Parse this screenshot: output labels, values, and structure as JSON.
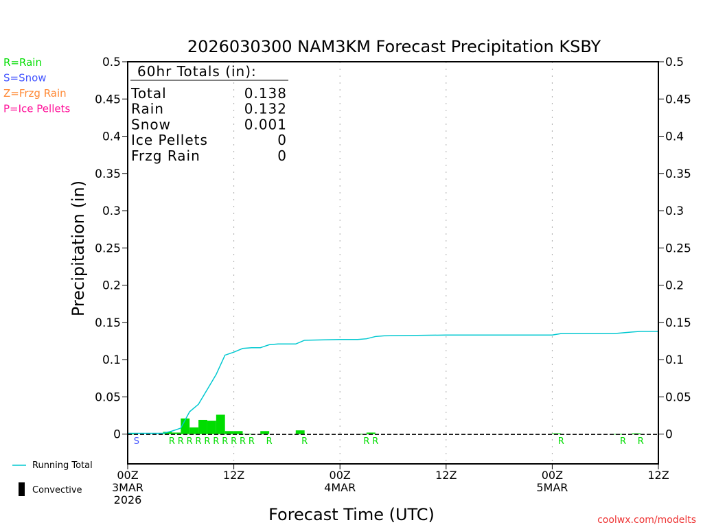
{
  "chart_data": {
    "type": "bar",
    "title": "2026030300 NAM3KM Forecast Precipitation KSBY",
    "xlabel": "Forecast Time (UTC)",
    "ylabel": "Precipitation  (in)",
    "ylim": [
      -0.04,
      0.5
    ],
    "xlim_hours": [
      0,
      60
    ],
    "yticks": [
      "0",
      "0.05",
      "0.1",
      "0.15",
      "0.2",
      "0.25",
      "0.3",
      "0.35",
      "0.4",
      "0.45",
      "0.5"
    ],
    "xticks": [
      {
        "hour": 0,
        "lines": [
          "00Z",
          "3MAR",
          "2026"
        ]
      },
      {
        "hour": 12,
        "lines": [
          "12Z"
        ]
      },
      {
        "hour": 24,
        "lines": [
          "00Z",
          "4MAR"
        ]
      },
      {
        "hour": 36,
        "lines": [
          "12Z"
        ]
      },
      {
        "hour": 48,
        "lines": [
          "00Z",
          "5MAR"
        ]
      },
      {
        "hour": 60,
        "lines": [
          "12Z"
        ]
      }
    ],
    "hourly_bars": [
      {
        "hour": 1,
        "value": 0.0005,
        "type": "S"
      },
      {
        "hour": 5,
        "value": 0.003,
        "type": "R"
      },
      {
        "hour": 6,
        "value": 0.002,
        "type": "R"
      },
      {
        "hour": 7,
        "value": 0.021,
        "type": "R"
      },
      {
        "hour": 8,
        "value": 0.009,
        "type": "R"
      },
      {
        "hour": 9,
        "value": 0.019,
        "type": "R"
      },
      {
        "hour": 10,
        "value": 0.018,
        "type": "R"
      },
      {
        "hour": 11,
        "value": 0.026,
        "type": "R"
      },
      {
        "hour": 12,
        "value": 0.004,
        "type": "R"
      },
      {
        "hour": 13,
        "value": 0.004,
        "type": "R"
      },
      {
        "hour": 14,
        "value": 0.0005,
        "type": "R"
      },
      {
        "hour": 16,
        "value": 0.004,
        "type": "R"
      },
      {
        "hour": 20,
        "value": 0.005,
        "type": "R"
      },
      {
        "hour": 27,
        "value": 0.0005,
        "type": "R"
      },
      {
        "hour": 28,
        "value": 0.002,
        "type": "R"
      },
      {
        "hour": 49,
        "value": 0.001,
        "type": "R"
      },
      {
        "hour": 56,
        "value": 0.0003,
        "type": "R"
      },
      {
        "hour": 58,
        "value": 0.001,
        "type": "R"
      }
    ],
    "running_total": {
      "hours": [
        0,
        1,
        4,
        5,
        6,
        7,
        8,
        9,
        10,
        11,
        12,
        13,
        14,
        15,
        16,
        17,
        18,
        19,
        20,
        24,
        26,
        27,
        28,
        29,
        36,
        48,
        49,
        55,
        56,
        57,
        58,
        60
      ],
      "values": [
        0.001,
        0.001,
        0.001,
        0.004,
        0.008,
        0.03,
        0.04,
        0.06,
        0.08,
        0.106,
        0.11,
        0.115,
        0.116,
        0.116,
        0.12,
        0.121,
        0.121,
        0.121,
        0.126,
        0.127,
        0.127,
        0.128,
        0.131,
        0.132,
        0.133,
        0.133,
        0.135,
        0.135,
        0.136,
        0.137,
        0.138,
        0.138
      ]
    },
    "legend": {
      "types": [
        {
          "code": "R",
          "label": "R=Rain",
          "color": "#00dd00"
        },
        {
          "code": "S",
          "label": "S=Snow",
          "color": "#4455ff"
        },
        {
          "code": "Z",
          "label": "Z=Frzg Rain",
          "color": "#ff8833"
        },
        {
          "code": "P",
          "label": "P=Ice Pellets",
          "color": "#ff1199"
        }
      ],
      "running_total": "Running Total",
      "convective": "Convective"
    },
    "totals": {
      "header": "60hr Totals (in):",
      "rows": [
        [
          "Total",
          "0.138"
        ],
        [
          "Rain",
          "0.132"
        ],
        [
          "Snow",
          "0.001"
        ],
        [
          "Ice Pellets",
          "0"
        ],
        [
          "Frzg Rain",
          "0"
        ]
      ]
    },
    "credit": "coolwx.com/modelts",
    "colors": {
      "line": "#00c8d0",
      "bar": "#00dd00",
      "credit": "#ee3333"
    }
  }
}
